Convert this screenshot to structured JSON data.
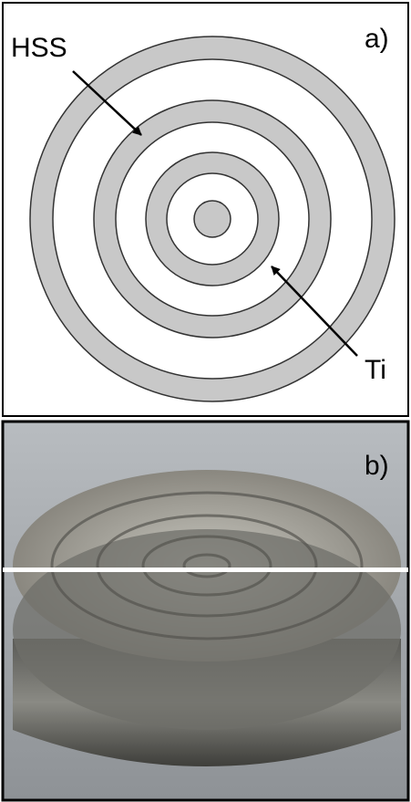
{
  "panel_a": {
    "label": "a)",
    "hss_label": "HSS",
    "ti_label": "Ti"
  },
  "panel_b": {
    "label": "b)"
  }
}
